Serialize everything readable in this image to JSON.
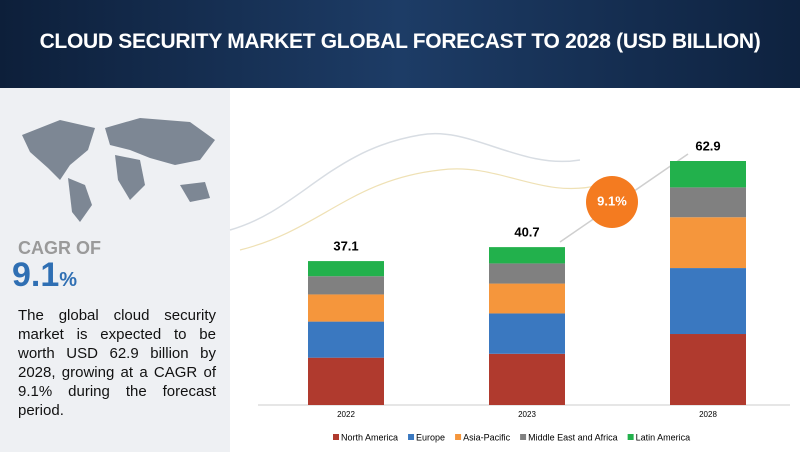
{
  "header": {
    "title": "CLOUD SECURITY MARKET GLOBAL FORECAST TO 2028 (USD BILLION)"
  },
  "sidebar": {
    "cagr_label": "CAGR OF",
    "cagr_value": "9.1",
    "cagr_unit": "%",
    "description": "The global cloud security market is expected to be worth USD 62.9 billion by 2028, growing at a CAGR of 9.1% during the forecast period."
  },
  "badge": "9.1%",
  "chart_data": {
    "type": "stacked_bar",
    "categories": [
      "2022",
      "2023",
      "2028"
    ],
    "totals": [
      37.1,
      40.7,
      62.9
    ],
    "series": [
      {
        "name": "North America",
        "color": "#b03a2e",
        "values": [
          12.2,
          13.2,
          18.3
        ]
      },
      {
        "name": "Europe",
        "color": "#3a78c0",
        "values": [
          9.3,
          10.4,
          17.0
        ]
      },
      {
        "name": "Asia-Pacific",
        "color": "#f5963c",
        "values": [
          7.0,
          7.7,
          13.1
        ]
      },
      {
        "name": "Middle East and Africa",
        "color": "#808080",
        "values": [
          4.7,
          5.2,
          7.7
        ]
      },
      {
        "name": "Latin America",
        "color": "#22b14c",
        "values": [
          3.9,
          4.2,
          6.8
        ]
      }
    ]
  }
}
